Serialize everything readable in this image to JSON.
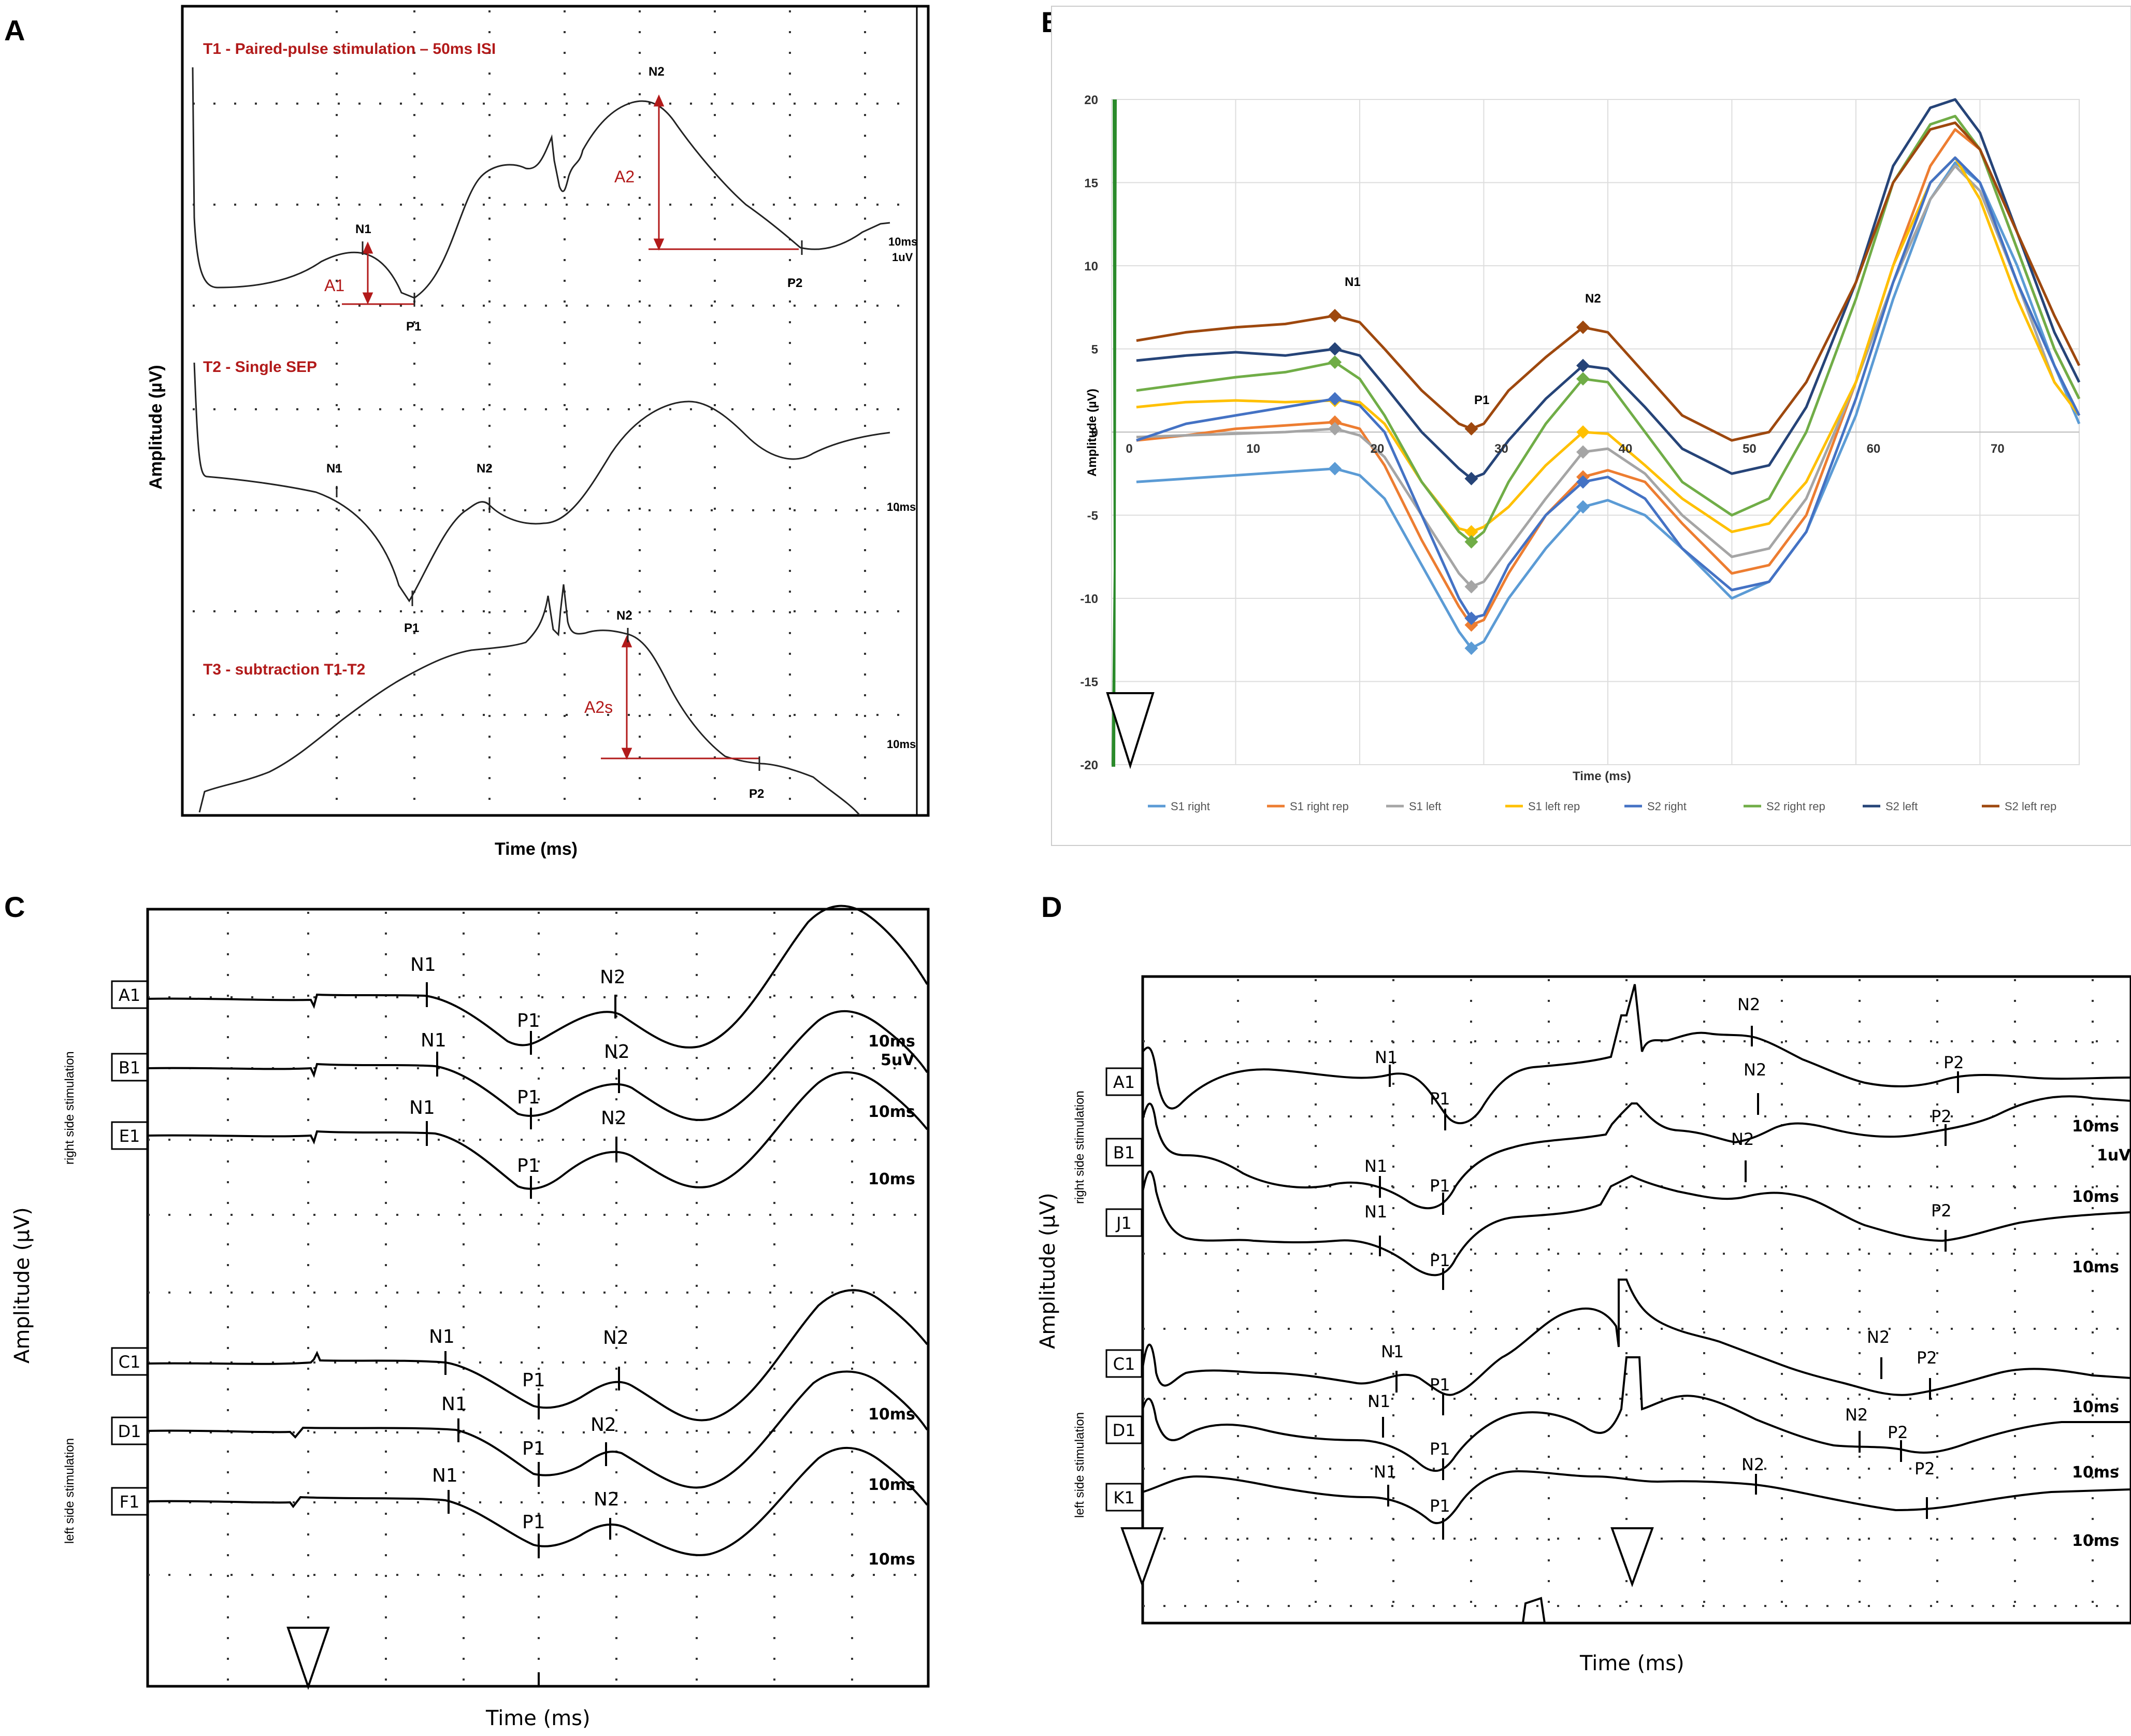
{
  "figure": {
    "panel_labels": [
      "A",
      "B",
      "C",
      "D"
    ]
  },
  "panel_a": {
    "xlabel": "Time (ms)",
    "ylabel": "Amplitude (µV)",
    "trace_titles": {
      "t1": "T1 - Paired-pulse stimulation – 50ms ISI",
      "t2": "T2 - Single SEP",
      "t3": "T3 - subtraction T1-T2"
    },
    "amplitudes": {
      "a1": "A1",
      "a2": "A2",
      "a2s": "A2s"
    },
    "peaks": {
      "n1": "N1",
      "p1": "P1",
      "n2": "N2",
      "p2": "P2"
    },
    "scales": {
      "t1_time": "10ms",
      "t1_amp": "1uV",
      "t2_time": "10ms",
      "t3_time": "10ms"
    },
    "colors": {
      "annotation": "#b21a1a",
      "trace": "#222222"
    }
  },
  "panel_c": {
    "xlabel": "Time (ms)",
    "ylabel": "Amplitude  (µV)",
    "group_right": "right side stimulation",
    "group_left": "left side stimulation",
    "rows": [
      "A1",
      "B1",
      "E1",
      "C1",
      "D1",
      "F1"
    ],
    "peaks": {
      "n1": "N1",
      "p1": "P1",
      "n2": "N2"
    },
    "scales": {
      "time": "10ms",
      "amp": "5uV"
    }
  },
  "panel_d": {
    "xlabel": "Time  (ms)",
    "ylabel": "Amplitude  (µV)",
    "group_right": "right side stimulation",
    "group_left": "left side stimulation",
    "rows": [
      "A1",
      "B1",
      "J1",
      "C1",
      "D1",
      "K1"
    ],
    "peaks": {
      "n1": "N1",
      "p1": "P1",
      "n2": "N2",
      "p2": "P2"
    },
    "scales": {
      "time": "10ms",
      "amp": "1uV"
    }
  },
  "chart_data": {
    "type": "line",
    "title": "",
    "xlabel": "Time (ms)",
    "ylabel": "Amplitude (µV)",
    "xlim": [
      0,
      78
    ],
    "ylim": [
      -20,
      20
    ],
    "x_ticks": [
      0,
      10,
      20,
      30,
      40,
      50,
      60,
      70
    ],
    "y_ticks": [
      20,
      15,
      10,
      5,
      0,
      -5,
      -10,
      -15,
      -20
    ],
    "grid": true,
    "legend_position": "bottom",
    "annotations": [
      "N1",
      "P1",
      "N2"
    ],
    "x": [
      2,
      6,
      10,
      14,
      18,
      20,
      22,
      25,
      28,
      29,
      30,
      32,
      35,
      38,
      40,
      43,
      46,
      50,
      53,
      56,
      60,
      63,
      66,
      68,
      70,
      73,
      76,
      78
    ],
    "series": [
      {
        "name": "S1 right",
        "color": "#5b9bd5",
        "values": [
          -3,
          -2.8,
          -2.6,
          -2.4,
          -2.2,
          -2.6,
          -4,
          -8,
          -12,
          -13,
          -12.6,
          -10,
          -7,
          -4.5,
          -4.1,
          -5,
          -7,
          -10,
          -9,
          -6,
          1,
          8,
          14,
          16.2,
          15,
          10,
          4,
          0.5
        ]
      },
      {
        "name": "S1 right rep",
        "color": "#ed7d31",
        "values": [
          -0.5,
          -0.2,
          0.2,
          0.4,
          0.6,
          0.2,
          -2,
          -6.5,
          -10.5,
          -11.6,
          -11.3,
          -8.5,
          -5,
          -2.7,
          -2.3,
          -3,
          -5.5,
          -8.5,
          -8,
          -5,
          3,
          10,
          16,
          18.2,
          17,
          11,
          5,
          2
        ]
      },
      {
        "name": "S1 left",
        "color": "#a5a5a5",
        "values": [
          -0.3,
          -0.2,
          -0.1,
          0,
          0.2,
          -0.2,
          -1.5,
          -5,
          -8.5,
          -9.3,
          -9,
          -7,
          -4,
          -1.2,
          -1,
          -2.5,
          -5,
          -7.5,
          -7,
          -4,
          3,
          9,
          14,
          16,
          14.5,
          9,
          3,
          1
        ]
      },
      {
        "name": "S1 left rep",
        "color": "#ffc000",
        "values": [
          1.5,
          1.8,
          1.9,
          1.8,
          1.9,
          1.8,
          0.5,
          -3,
          -5.8,
          -6,
          -5.7,
          -4.5,
          -2,
          0,
          -0.1,
          -2,
          -4,
          -6,
          -5.5,
          -3,
          3,
          10,
          15,
          16.5,
          14,
          8,
          3,
          1
        ]
      },
      {
        "name": "S2 right",
        "color": "#4472c4",
        "values": [
          -0.5,
          0.5,
          1,
          1.5,
          2,
          1.6,
          0,
          -5,
          -10,
          -11.2,
          -11,
          -8,
          -5,
          -3,
          -2.7,
          -4,
          -7,
          -9.5,
          -9,
          -6,
          2,
          9,
          15,
          16.5,
          15,
          9,
          4,
          1
        ]
      },
      {
        "name": "S2 right rep",
        "color": "#70ad47",
        "values": [
          2.5,
          2.9,
          3.3,
          3.6,
          4.2,
          3.2,
          1,
          -3,
          -6,
          -6.6,
          -6,
          -3,
          0.5,
          3.2,
          3,
          0,
          -3,
          -5,
          -4,
          0,
          8,
          15,
          18.5,
          19,
          17,
          11,
          5,
          2
        ]
      },
      {
        "name": "S2 left",
        "color": "#264478",
        "values": [
          4.3,
          4.6,
          4.8,
          4.6,
          5,
          4.6,
          2.8,
          0,
          -2.2,
          -2.8,
          -2.5,
          -0.5,
          2,
          4,
          3.8,
          1.5,
          -1,
          -2.5,
          -2,
          1.5,
          9,
          16,
          19.5,
          20,
          18,
          12,
          6,
          3
        ]
      },
      {
        "name": "S2 left rep",
        "color": "#9e480e",
        "values": [
          5.5,
          6,
          6.3,
          6.5,
          7,
          6.6,
          5,
          2.5,
          0.5,
          0.2,
          0.5,
          2.5,
          4.5,
          6.3,
          6,
          3.5,
          1,
          -0.5,
          0,
          3,
          9,
          15,
          18.2,
          18.6,
          17,
          12,
          7,
          4
        ]
      }
    ]
  }
}
